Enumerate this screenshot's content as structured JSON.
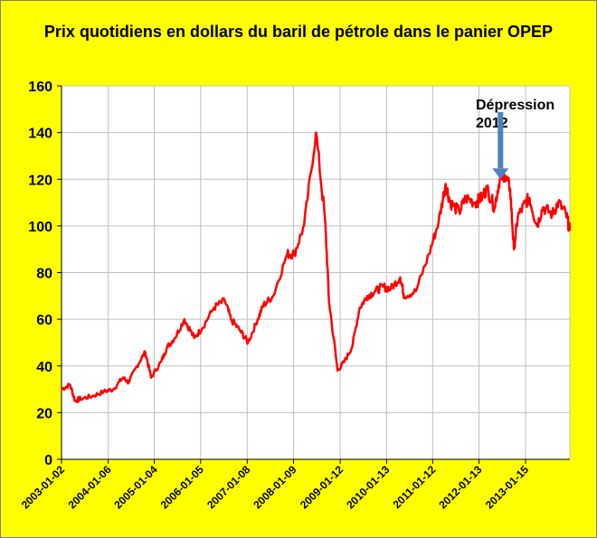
{
  "chart_data": {
    "type": "line",
    "title": "Prix quotidiens en dollars du baril de pétrole dans le panier OPEP",
    "xlabel": "",
    "ylabel": "",
    "ylim": [
      0,
      160
    ],
    "yticks": [
      0,
      20,
      40,
      60,
      80,
      100,
      120,
      140,
      160
    ],
    "xlim": [
      "2003-01-02",
      "2013-12-31"
    ],
    "xtick_labels": [
      "2003-01-02",
      "2004-01-06",
      "2005-01-04",
      "2006-01-05",
      "2007-01-08",
      "2008-01-09",
      "2009-01-12",
      "2010-01-13",
      "2011-01-12",
      "2012-01-13",
      "2013-01-15"
    ],
    "grid": true,
    "legend": "none",
    "colors": {
      "background": "#ffff00",
      "plot_area": "#ffffff",
      "line": "#ff0000",
      "arrow": "#4f81bd",
      "grid": "#c0c0c0"
    },
    "annotations": [
      {
        "line1": "Dépression",
        "line2": "2012",
        "target_x": "2012-07-01",
        "target_y": 120
      }
    ],
    "series": [
      {
        "x": [
          "2003-01-02",
          "2003-03-10",
          "2003-04-20",
          "2003-06-01",
          "2003-09-01",
          "2003-12-01",
          "2004-02-15",
          "2004-05-01",
          "2004-06-15",
          "2004-08-20",
          "2004-10-25",
          "2004-12-10",
          "2005-03-01",
          "2005-04-15",
          "2005-06-15",
          "2005-08-30",
          "2005-11-15",
          "2006-01-15",
          "2006-04-20",
          "2006-07-15",
          "2006-09-01",
          "2006-11-15",
          "2007-01-15",
          "2007-04-01",
          "2007-05-15",
          "2007-08-01",
          "2007-11-20",
          "2008-01-15",
          "2008-04-01",
          "2008-07-05",
          "2008-09-15",
          "2008-10-15",
          "2008-12-22",
          "2009-02-15",
          "2009-04-15",
          "2009-06-15",
          "2009-08-15",
          "2009-10-15",
          "2009-12-15",
          "2010-02-15",
          "2010-05-01",
          "2010-06-01",
          "2010-09-01",
          "2010-12-15",
          "2011-03-01",
          "2011-04-25",
          "2011-06-01",
          "2011-08-10",
          "2011-10-01",
          "2011-12-15",
          "2012-02-01",
          "2012-03-15",
          "2012-05-15",
          "2012-06-25",
          "2012-08-01",
          "2012-09-15",
          "2012-10-15",
          "2012-11-15",
          "2013-01-15",
          "2013-02-15",
          "2013-04-15",
          "2013-06-01",
          "2013-08-15",
          "2013-10-01",
          "2013-12-01",
          "2013-12-31"
        ],
        "values": [
          30,
          32,
          25,
          26,
          27,
          29,
          30,
          35,
          33,
          40,
          46,
          35,
          42,
          48,
          52,
          60,
          52,
          56,
          65,
          68,
          60,
          55,
          50,
          60,
          66,
          70,
          88,
          88,
          100,
          140,
          102,
          68,
          38,
          42,
          48,
          65,
          70,
          72,
          74,
          73,
          78,
          70,
          72,
          88,
          102,
          118,
          110,
          106,
          112,
          110,
          112,
          116,
          108,
          120,
          122,
          116,
          90,
          104,
          110,
          112,
          100,
          108,
          105,
          110,
          105,
          98
        ]
      }
    ]
  }
}
